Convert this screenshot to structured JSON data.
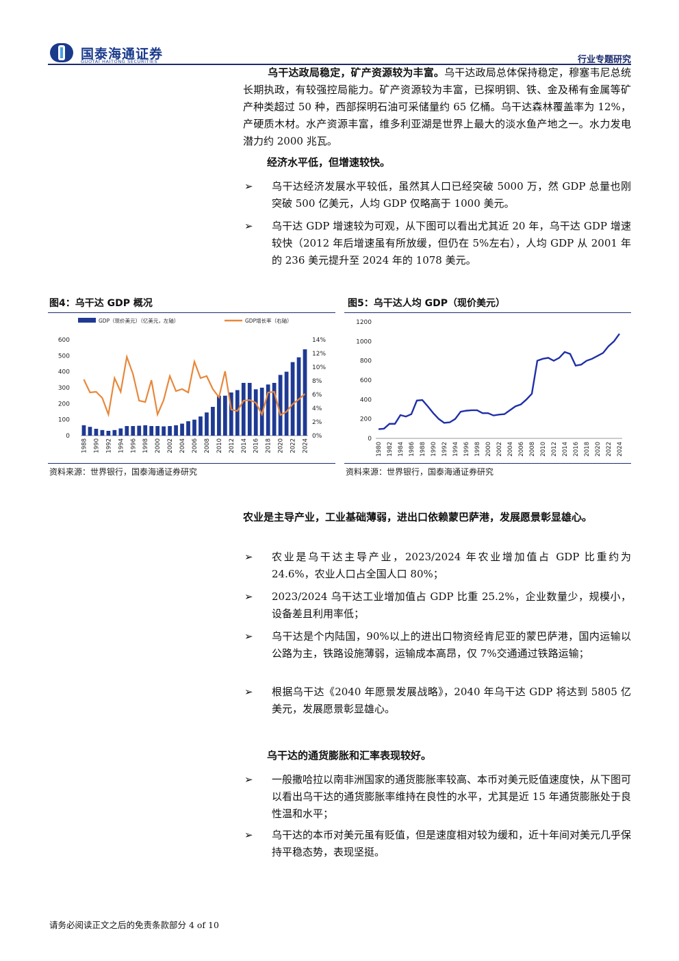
{
  "header": {
    "brand_cn": "国泰海通证券",
    "brand_en": "GUOTAI HAITONG SECURITIES",
    "section": "行业专题研究"
  },
  "section1": {
    "lead_bold": "乌干达政局稳定，矿产资源较为丰富。",
    "body": "乌干达政局总体保持稳定，穆塞韦尼总统长期执政，有较强控局能力。矿产资源较为丰富，已探明铜、铁、金及稀有金属等矿产种类超过 50 种，西部探明石油可采储量约 65 亿桶。乌干达森林覆盖率为 12%，产硬质木材。水产资源丰富，维多利亚湖是世界上最大的淡水鱼产地之一。水力发电潜力约 2000 兆瓦。"
  },
  "section2": {
    "heading": "经济水平低，但增速较快。",
    "bullets": [
      "乌干达经济发展水平较低，虽然其人口已经突破 5000 万，然 GDP 总量也刚突破 500 亿美元，人均 GDP 仅略高于 1000 美元。",
      "乌干达 GDP 增速较为可观，从下图可以看出尤其近 20 年，乌干达 GDP 增速较快（2012 年后增速虽有所放缓，但仍在 5%左右），人均 GDP 从 2001 年的 236 美元提升至 2024 年的 1078 美元。"
    ]
  },
  "figures": {
    "fig4_title": "图4：乌干达 GDP 概况",
    "fig5_title": "图5：乌干达人均 GDP（现价美元）",
    "source": "资料来源：世界银行，国泰海通证券研究"
  },
  "section3": {
    "heading": "农业是主导产业，工业基础薄弱，进出口依赖蒙巴萨港，发展愿景彰显雄心。",
    "bullets": [
      "农业是乌干达主导产业，2023/2024 年农业增加值占 GDP 比重约为 24.6%，农业人口占全国人口 80%；",
      "2023/2024 乌干达工业增加值占 GDP 比重 25.2%，企业数量少，规模小，设备差且利用率低；",
      "乌干达是个内陆国，90%以上的进出口物资经肯尼亚的蒙巴萨港，国内运输以公路为主，铁路设施薄弱，运输成本高昂，仅 7%交通通过铁路运输；",
      "根据乌干达《2040 年愿景发展战略》，2040 年乌干达 GDP 将达到 5805 亿美元，发展愿景彰显雄心。"
    ]
  },
  "section4": {
    "heading": "乌干达的通货膨胀和汇率表现较好。",
    "bullets": [
      "一般撒哈拉以南非洲国家的通货膨胀率较高、本币对美元贬值速度快，从下图可以看出乌干达的通货膨胀率维持在良性的水平，尤其是近 15 年通货膨胀处于良性温和水平；",
      "乌干达的本币对美元虽有贬值，但是速度相对较为缓和，近十年间对美元几乎保持平稳态势，表现坚挺。"
    ]
  },
  "bullet_marker": "➢",
  "footer": "请务必阅读正文之后的免责条款部分 4 of 10",
  "colors": {
    "bar": "#1f3a93",
    "line": "#e8873a",
    "navy": "#1a2a6c"
  },
  "chart_data": [
    {
      "type": "bar",
      "legend": [
        "GDP（现价美元）（亿美元，左轴）",
        "GDP增长率（右轴）"
      ],
      "legend_position": "top",
      "x": [
        1988,
        1989,
        1990,
        1991,
        1992,
        1993,
        1994,
        1995,
        1996,
        1997,
        1998,
        1999,
        2000,
        2001,
        2002,
        2003,
        2004,
        2005,
        2006,
        2007,
        2008,
        2009,
        2010,
        2011,
        2012,
        2013,
        2014,
        2015,
        2016,
        2017,
        2018,
        2019,
        2020,
        2021,
        2022,
        2023,
        2024
      ],
      "x_tick_labels": [
        "1988",
        "1990",
        "1992",
        "1994",
        "1996",
        "1998",
        "2000",
        "2002",
        "2004",
        "2006",
        "2008",
        "2010",
        "2012",
        "2014",
        "2016",
        "2018",
        "2020",
        "2022",
        "2024"
      ],
      "series": [
        {
          "name": "GDP（现价美元）（亿美元，左轴）",
          "axis": "left",
          "values": [
            65,
            55,
            43,
            35,
            30,
            35,
            45,
            60,
            60,
            62,
            65,
            60,
            60,
            58,
            60,
            65,
            75,
            90,
            100,
            120,
            145,
            180,
            250,
            250,
            270,
            285,
            330,
            330,
            290,
            300,
            320,
            330,
            380,
            400,
            460,
            490,
            540
          ]
        },
        {
          "name": "GDP增长率（右轴）",
          "axis": "right",
          "values": [
            8.2,
            6.3,
            6.4,
            5.5,
            3.1,
            8.4,
            6.4,
            11.5,
            9.0,
            5.1,
            4.9,
            8.1,
            3.1,
            5.2,
            8.7,
            6.5,
            6.8,
            6.3,
            10.8,
            8.4,
            8.7,
            6.8,
            5.6,
            9.4,
            3.8,
            3.6,
            5.1,
            5.2,
            4.8,
            3.1,
            6.3,
            6.4,
            3.0,
            3.5,
            4.6,
            5.3,
            6.1
          ]
        }
      ],
      "ylim_left": [
        0,
        600
      ],
      "yticks_left": [
        "0",
        "100",
        "200",
        "300",
        "400",
        "500",
        "600"
      ],
      "ylim_right": [
        0,
        14
      ],
      "yticks_right": [
        "0%",
        "2%",
        "4%",
        "6%",
        "8%",
        "10%",
        "12%",
        "14%"
      ],
      "grid": false
    },
    {
      "type": "line",
      "x": [
        1980,
        1981,
        1982,
        1983,
        1984,
        1985,
        1986,
        1987,
        1988,
        1989,
        1990,
        1991,
        1992,
        1993,
        1994,
        1995,
        1996,
        1997,
        1998,
        1999,
        2000,
        2001,
        2002,
        2003,
        2004,
        2005,
        2006,
        2007,
        2008,
        2009,
        2010,
        2011,
        2012,
        2013,
        2014,
        2015,
        2016,
        2017,
        2018,
        2019,
        2020,
        2021,
        2022,
        2023,
        2024
      ],
      "x_tick_labels": [
        "1980",
        "1982",
        "1984",
        "1986",
        "1988",
        "1990",
        "1992",
        "1994",
        "1996",
        "1998",
        "2000",
        "2002",
        "2004",
        "2006",
        "2008",
        "2010",
        "2012",
        "2014",
        "2016",
        "2018",
        "2020",
        "2022",
        "2024"
      ],
      "series": [
        {
          "name": "",
          "values": [
            95,
            100,
            150,
            150,
            240,
            225,
            250,
            390,
            395,
            330,
            260,
            200,
            160,
            165,
            200,
            275,
            285,
            290,
            290,
            260,
            260,
            236,
            245,
            250,
            290,
            330,
            350,
            400,
            460,
            800,
            820,
            830,
            800,
            830,
            890,
            870,
            750,
            760,
            800,
            820,
            850,
            880,
            950,
            1000,
            1078
          ]
        }
      ],
      "ylim": [
        0,
        1200
      ],
      "yticks": [
        "0",
        "200",
        "400",
        "600",
        "800",
        "1000",
        "1200"
      ],
      "grid": false
    }
  ]
}
